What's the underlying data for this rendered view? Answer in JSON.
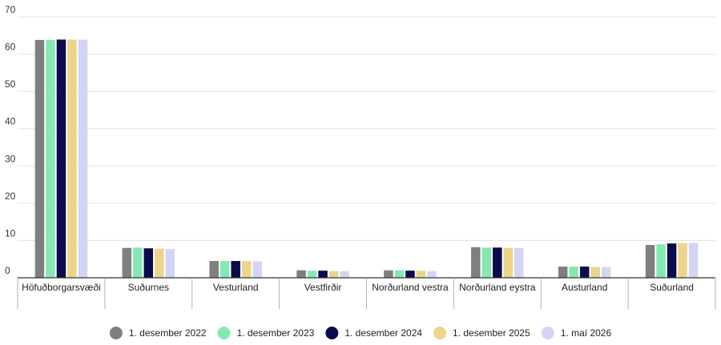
{
  "chart_data": {
    "type": "bar",
    "title": "",
    "xlabel": "",
    "ylabel": "",
    "ylim": [
      0,
      70
    ],
    "yticks": [
      0,
      10,
      20,
      30,
      40,
      50,
      60,
      70
    ],
    "grid": true,
    "legend_position": "bottom",
    "categories": [
      "Höfuðborgarsvæði",
      "Suðurnes",
      "Vesturland",
      "Vestfirðir",
      "Norðurland vestra",
      "Norðurland eystra",
      "Austurland",
      "Suðurland"
    ],
    "series": [
      {
        "name": "1. desember 2022",
        "color": "#7f7f7f",
        "values": [
          63.8,
          8.0,
          4.5,
          2.0,
          2.0,
          8.2,
          3.0,
          8.8
        ]
      },
      {
        "name": "1. desember 2023",
        "color": "#86e8b2",
        "values": [
          63.8,
          8.1,
          4.5,
          1.9,
          2.0,
          8.1,
          3.0,
          9.0
        ]
      },
      {
        "name": "1. desember 2024",
        "color": "#0b0b4d",
        "values": [
          63.9,
          7.9,
          4.5,
          1.9,
          1.9,
          8.1,
          3.0,
          9.2
        ]
      },
      {
        "name": "1. desember 2025",
        "color": "#ecd48a",
        "values": [
          63.9,
          7.8,
          4.5,
          1.8,
          1.9,
          8.0,
          2.9,
          9.3
        ]
      },
      {
        "name": "1. maí 2026",
        "color": "#d4d4f4",
        "values": [
          63.9,
          7.7,
          4.4,
          1.8,
          1.8,
          8.0,
          2.9,
          9.4
        ]
      }
    ]
  }
}
